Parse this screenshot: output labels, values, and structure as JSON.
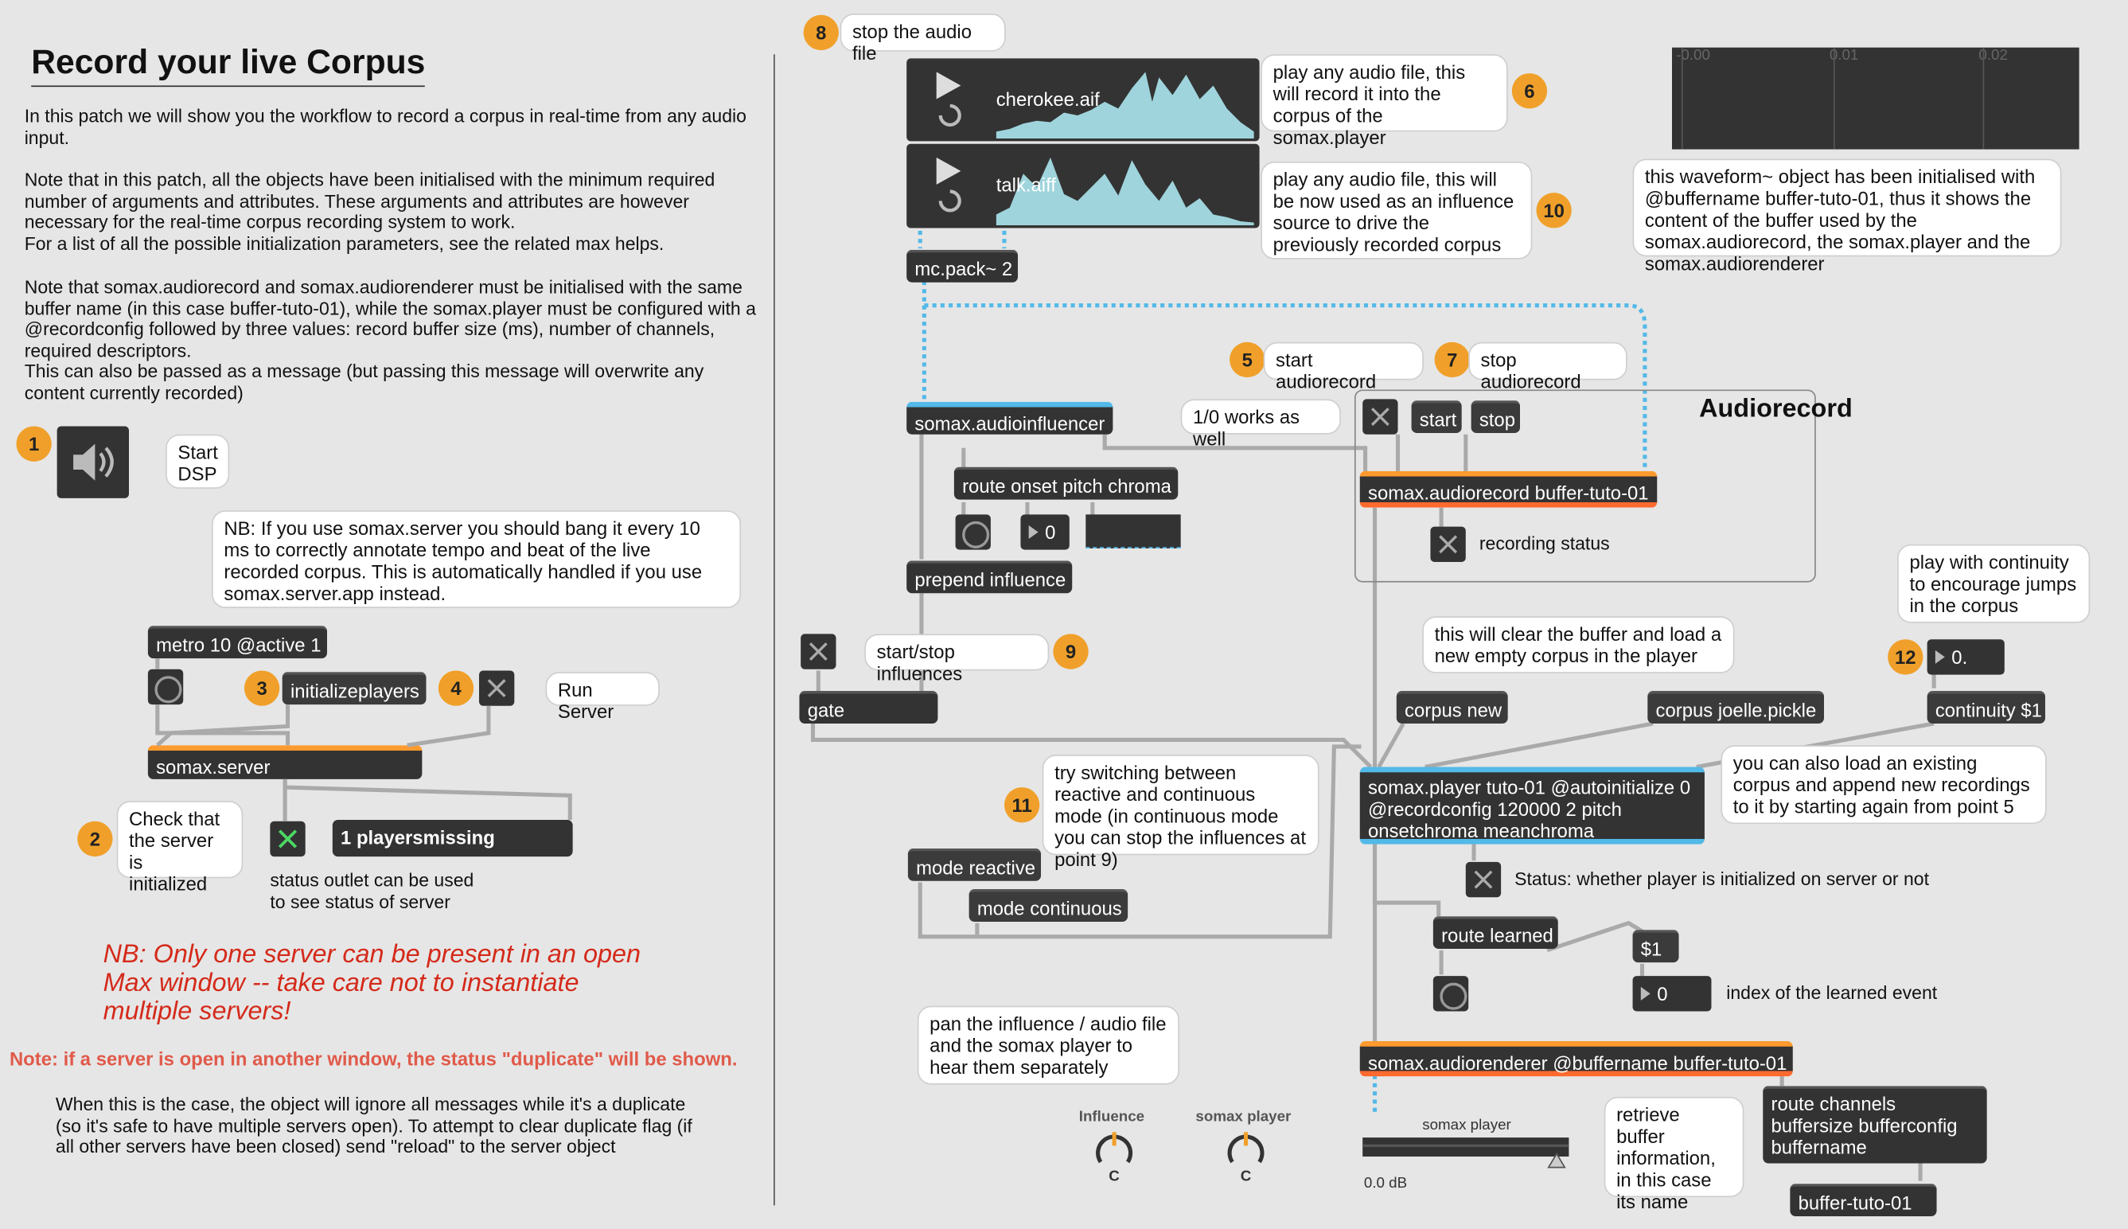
{
  "header": {
    "title": "Record your live Corpus",
    "intro": "In this patch we will show you the workflow to record a corpus in real-time from any audio input.",
    "note1": "Note that in this patch, all the objects have been initialised with the minimum required number of arguments and attributes. These arguments and attributes are however necessary for the real-time corpus recording system to work.\nFor a list of all the possible initialization parameters, see the related max helps.",
    "note2": "Note that somax.audiorecord and somax.audiorenderer must be initialised with the same buffer name (in this case buffer-tuto-01), while the somax.player must be configured with a @recordconfig followed by three values: record buffer size (ms), number of channels, required descriptors.\nThis can also be passed as a message (but passing this message will overwrite any content currently recorded)"
  },
  "badges": {
    "b1": "1",
    "b2": "2",
    "b3": "3",
    "b4": "4",
    "b5": "5",
    "b6": "6",
    "b7": "7",
    "b8": "8",
    "b9": "9",
    "b10": "10",
    "b11": "11",
    "b12": "12"
  },
  "comments": {
    "start_dsp": "Start\nDSP",
    "nb_server": "NB: If you use somax.server you should bang it every 10 ms to correctly annotate tempo and beat of the live recorded corpus. This is automatically handled if you use somax.server.app instead.",
    "run_server": "Run Server",
    "check_server": "Check that\nthe server is\ninitialized",
    "status_outlet": "status outlet can be used\nto see status of server",
    "stop_audio": "stop the audio file",
    "play_audio_1": "play any audio file, this will record it into the corpus of the somax.player",
    "play_audio_2": "play any audio file, this will be now used as an influence source to drive the previously recorded corpus",
    "start_audiorecord": "start audiorecord",
    "stop_audiorecord": "stop audiorecord",
    "one_zero": "1/0 works as well",
    "recording_status": "recording status",
    "start_stop_infl": "start/stop influences",
    "clear_buffer": "this will clear the buffer and load a new empty corpus in the player",
    "continuity": "play with continuity to encourage jumps in the corpus",
    "load_existing": "you can also load an existing corpus and append new recordings to it by starting again from point 5",
    "switch_mode": "try switching between reactive and continuous mode (in continuous mode you can stop the influences at point 9)",
    "player_status": "Status: whether player is initialized on server or not",
    "learned_index": "index of the learned event",
    "pan": "pan the influence / audio file and the somax player to hear them separately",
    "retrieve_buffer": "retrieve buffer information, in this case its name",
    "waveform_note": "this waveform~ object has been initialised with @buffername buffer-tuto-01, thus it shows the content of the buffer used by the somax.audiorecord, the somax.player and the somax.audiorenderer",
    "audiorecord_panel": "Audiorecord"
  },
  "warnings": {
    "one_server": "NB: Only one server can be present in an open\nMax window -- take care not to instantiate\nmultiple servers!",
    "duplicate": "Note: if a server is open in another window, the status \"duplicate\" will be shown.",
    "duplicate_detail": "When this is the case, the object will ignore all messages while it's a duplicate (so it's safe to have multiple servers open). To attempt to clear duplicate flag (if all other servers have been closed) send \"reload\" to the server object"
  },
  "objects": {
    "metro": "metro 10 @active 1",
    "initializeplayers": "initializeplayers",
    "somax_server": "somax.server",
    "players_missing": "1 playersmissing",
    "mc_pack": "mc.pack~ 2",
    "audioinfluencer": "somax.audioinfluencer",
    "route_onset": "route onset pitch chroma",
    "num_zero": "0",
    "prepend_influence": "prepend influence",
    "gate": "gate",
    "start": "start",
    "stop": "stop",
    "audiorecord": "somax.audiorecord buffer-tuto-01",
    "corpus_new": "corpus new",
    "corpus_joelle": "corpus joelle.pickle",
    "continuity_msg": "continuity $1",
    "continuity_num": "0.",
    "player": "somax.player tuto-01 @autoinitialize 0\n@recordconfig 120000 2 pitch\nonsetchroma meanchroma",
    "mode_reactive": "mode reactive",
    "mode_continuous": "mode continuous",
    "route_learned": "route learned",
    "dollar1": "$1",
    "learned_num": "0",
    "renderer": "somax.audiorenderer @buffername buffer-tuto-01",
    "route_channels": "route channels\nbuffersize bufferconfig\nbuffername",
    "buffer_name": "buffer-tuto-01"
  },
  "audio_players": [
    {
      "file": "cherokee.aif"
    },
    {
      "file": "talk.aiff"
    }
  ],
  "waveform": {
    "ticks": [
      "-0.00",
      "0.01",
      "0.02"
    ]
  },
  "dials": {
    "influence": "Influence",
    "player": "somax player",
    "dial_label": "C"
  },
  "gain": {
    "label": "somax player",
    "value": "0.0 dB"
  },
  "colors": {
    "badge": "#f0a02a",
    "object": "#333333",
    "orange": "#ff9a2e",
    "blue": "#53b9e8",
    "warning": "#d42a1a",
    "wave": "#9fd4dc"
  }
}
